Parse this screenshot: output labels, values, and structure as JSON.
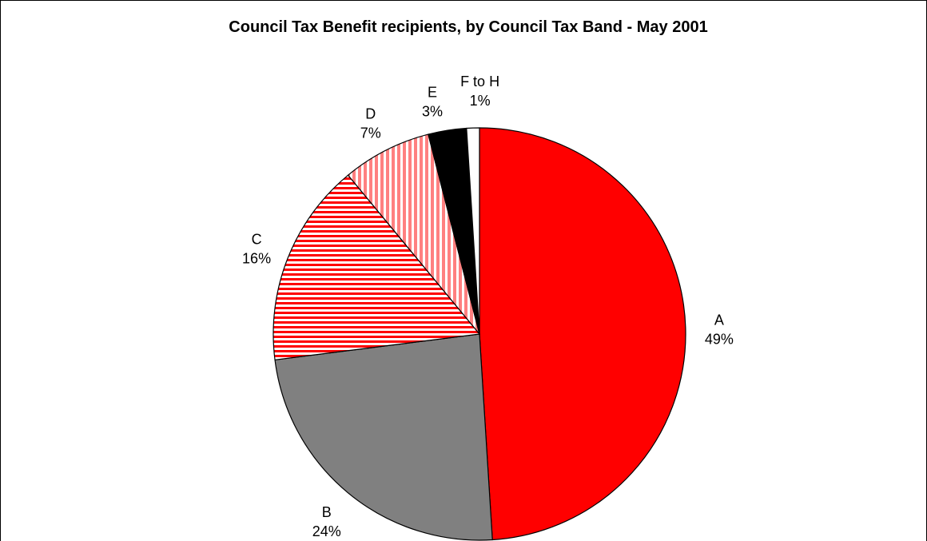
{
  "chart_data": {
    "type": "pie",
    "title": "Council Tax Benefit recipients, by Council Tax Band - May 2001",
    "categories": [
      "A",
      "B",
      "C",
      "D",
      "E",
      "F to H"
    ],
    "values": [
      49,
      24,
      16,
      7,
      3,
      1
    ],
    "value_labels": [
      "49%",
      "24%",
      "16%",
      "7%",
      "3%",
      "1%"
    ],
    "unit": "%",
    "start_angle": "12 o'clock, clockwise",
    "legend": "none (labels beside slices)",
    "colors": {
      "A": "#ff0000",
      "B": "#808080",
      "C": "#ff0000",
      "D": "#ff8080",
      "E": "#000000",
      "F to H": "#ffffff",
      "outline": "#000000"
    },
    "fills": {
      "A": "solid red",
      "B": "solid grey",
      "C": "red horizontal stripes on white",
      "D": "pink vertical stripes on white",
      "E": "solid black",
      "F to H": "solid white"
    }
  }
}
